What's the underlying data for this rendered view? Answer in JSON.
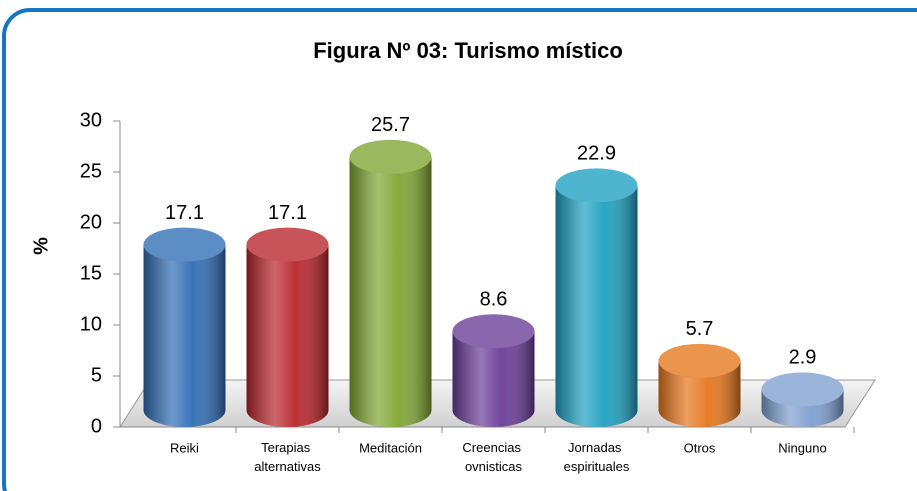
{
  "chart_data": {
    "type": "bar",
    "title": "Figura Nº 03: Turismo místico",
    "y_label": "%",
    "categories": [
      "Reiki",
      "Terapias alternativas",
      "Meditación",
      "Creencias ovnisticas",
      "Jornadas espirituales",
      "Otros",
      "Ninguno"
    ],
    "values": [
      17.1,
      17.1,
      25.7,
      8.6,
      22.9,
      5.7,
      2.9
    ],
    "colors": [
      "#2f6db5",
      "#b8252a",
      "#7ea632",
      "#6a3c97",
      "#1ea0c0",
      "#e6761c",
      "#7e9fd0"
    ],
    "ylim": [
      0,
      30
    ],
    "yticks": [
      0,
      5,
      10,
      15,
      20,
      25,
      30
    ],
    "grid": false
  }
}
